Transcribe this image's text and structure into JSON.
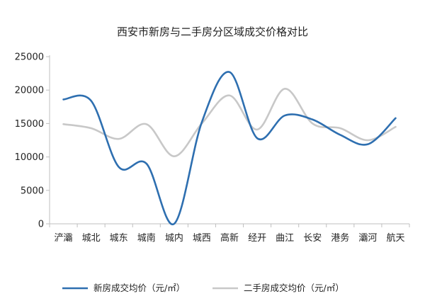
{
  "chart_data": {
    "type": "line",
    "title": "西安市新房与二手房分区域成交价格对比",
    "xlabel": "",
    "ylabel": "",
    "categories": [
      "浐灞",
      "城北",
      "城东",
      "城南",
      "城内",
      "城西",
      "高新",
      "经开",
      "曲江",
      "长安",
      "港务",
      "灞河",
      "航天"
    ],
    "ylim": [
      0,
      25000
    ],
    "yticks": [
      "25000",
      "20000",
      "15000",
      "10000",
      "5000",
      "0"
    ],
    "yticks_values": [
      25000,
      20000,
      15000,
      10000,
      5000,
      0
    ],
    "grid": false,
    "smooth": true,
    "legend_position": "bottom",
    "series": [
      {
        "name": "新房成交均价（元/㎡）",
        "color": "#2e6fb0",
        "values": [
          18600,
          18400,
          8500,
          9000,
          0,
          15200,
          22700,
          12800,
          16200,
          15600,
          13300,
          11900,
          15800
        ]
      },
      {
        "name": "二手房成交均价（元/㎡）",
        "color": "#c8c8c8",
        "values": [
          14900,
          14300,
          12700,
          14900,
          10100,
          15000,
          19200,
          14100,
          20200,
          15000,
          14300,
          12500,
          14500
        ]
      }
    ]
  }
}
